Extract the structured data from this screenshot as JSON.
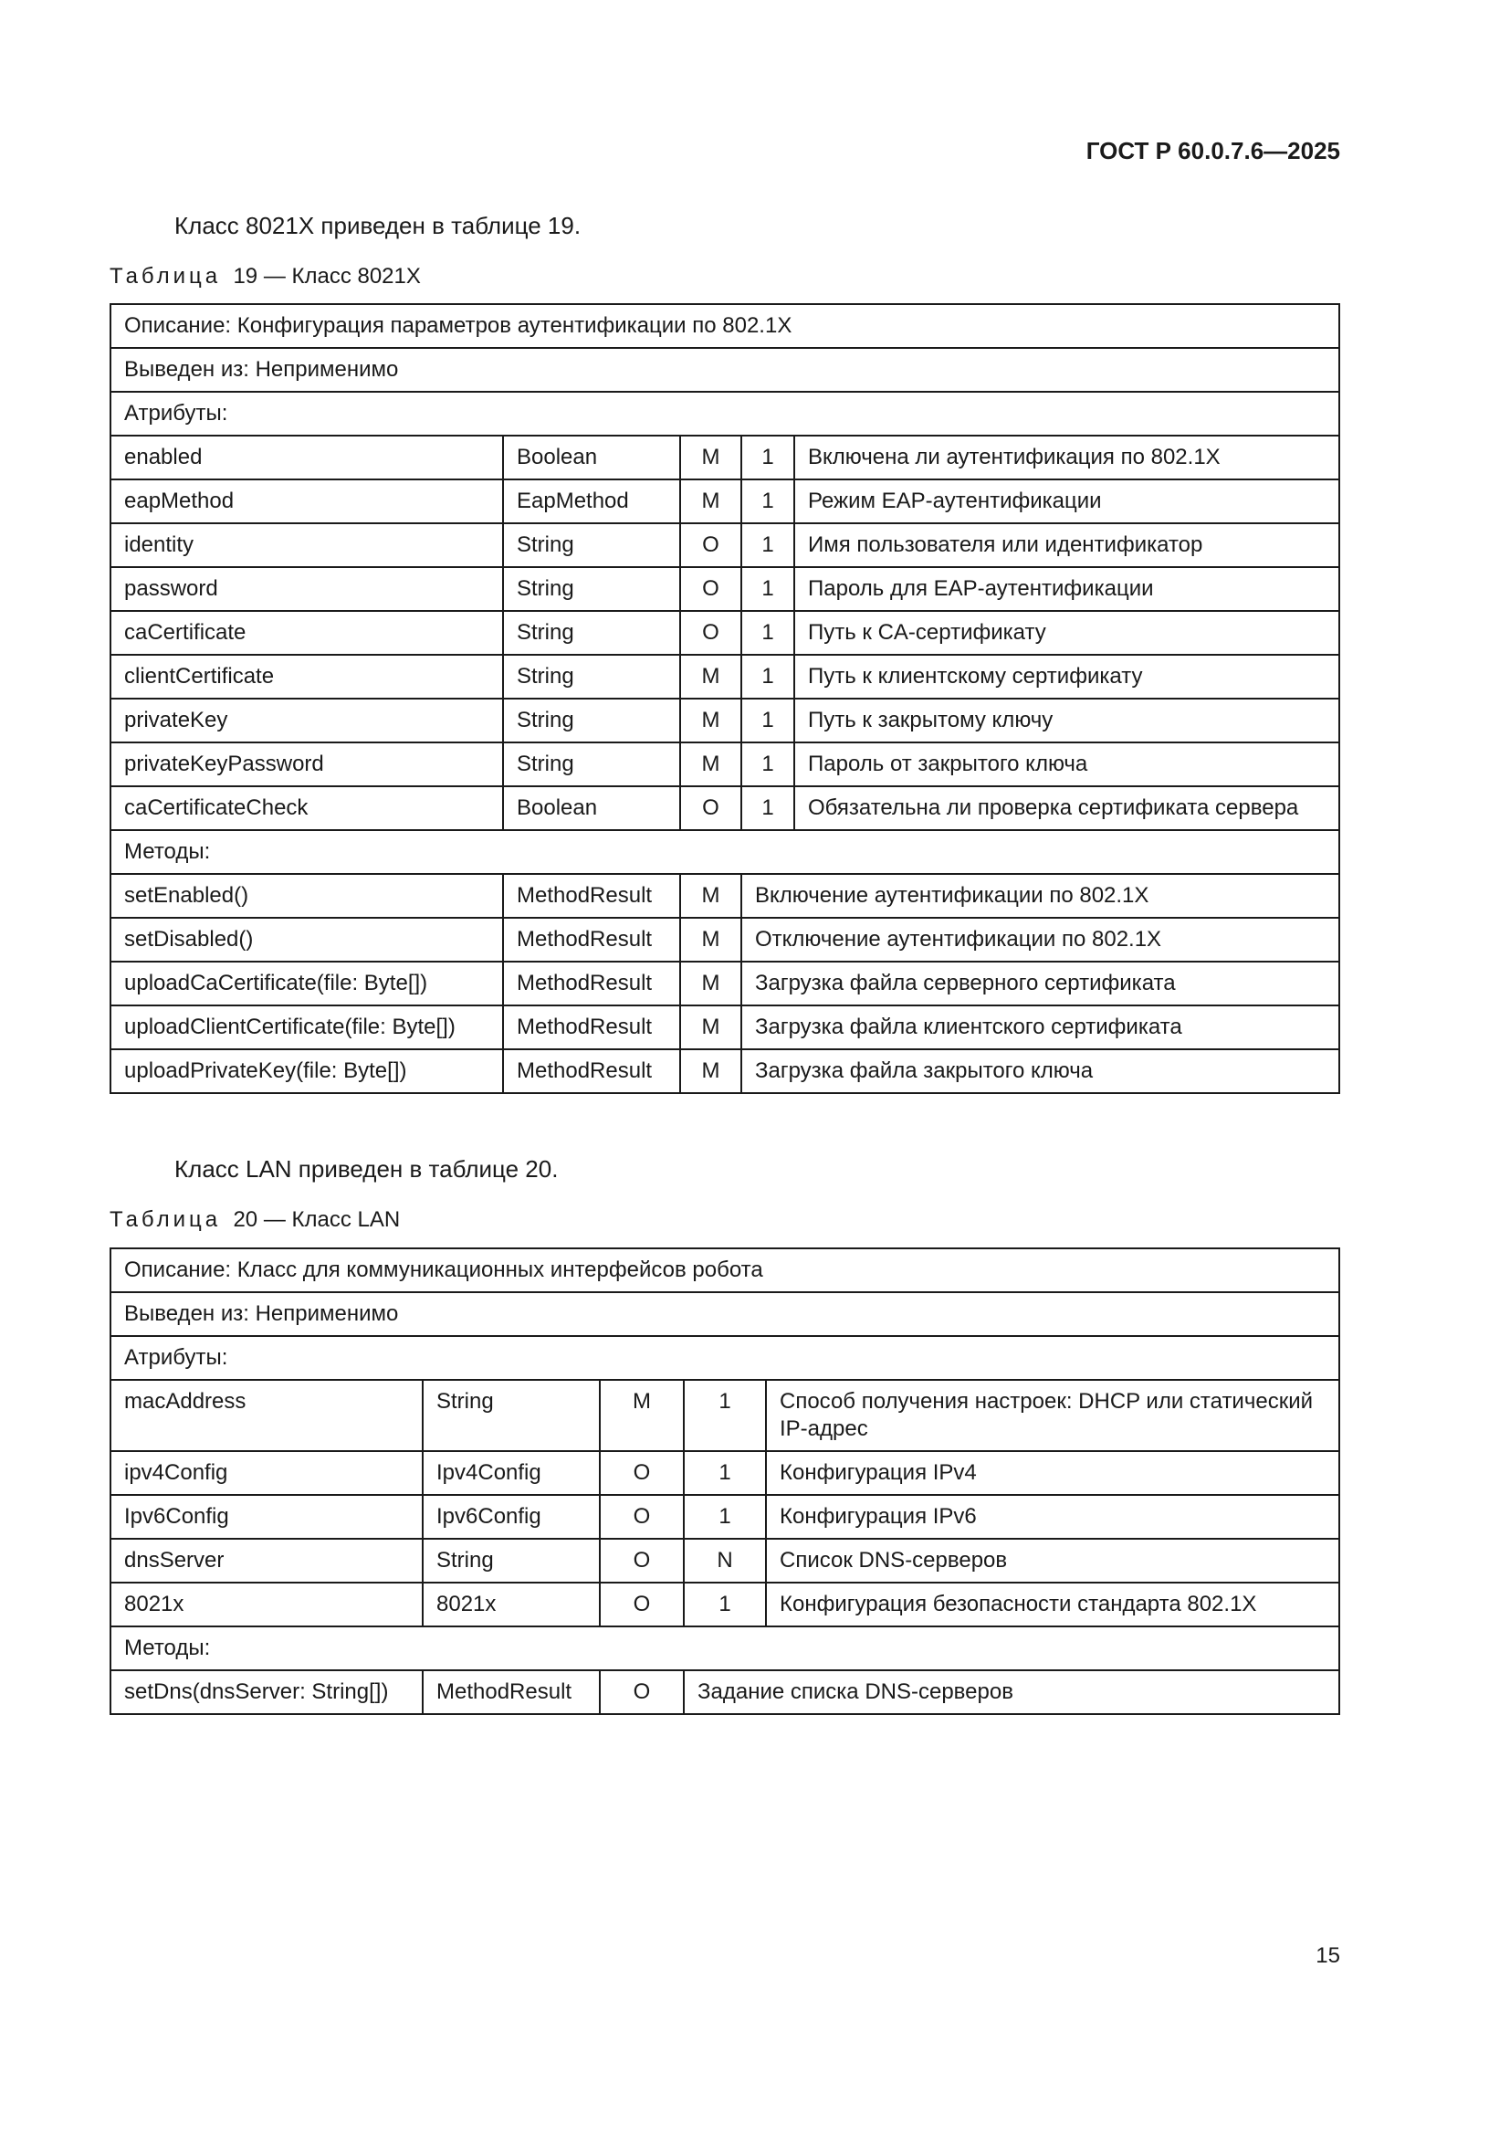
{
  "header": {
    "doc_code": "ГОСТ Р 60.0.7.6—2025"
  },
  "section1": {
    "intro": "Класс 8021X приведен в таблице 19.",
    "caption_label": "Таблица",
    "caption_text": "19 — Класс 8021X",
    "description": "Описание: Конфигурация параметров аутентификации по 802.1X",
    "derived": "Выведен из: Неприменимо",
    "attributes_label": "Атрибуты:",
    "attributes": [
      [
        "enabled",
        "Boolean",
        "M",
        "1",
        "Включена ли аутентификация по 802.1X"
      ],
      [
        "eapMethod",
        "EapMethod",
        "M",
        "1",
        "Режим EAP-аутентификации"
      ],
      [
        "identity",
        "String",
        "O",
        "1",
        "Имя пользователя или идентификатор"
      ],
      [
        "password",
        "String",
        "O",
        "1",
        "Пароль для EAP-аутентификации"
      ],
      [
        "caCertificate",
        "String",
        "O",
        "1",
        "Путь к CA-сертификату"
      ],
      [
        "clientCertificate",
        "String",
        "M",
        "1",
        "Путь к клиентскому сертификату"
      ],
      [
        "privateKey",
        "String",
        "M",
        "1",
        "Путь к закрытому ключу"
      ],
      [
        "privateKeyPassword",
        "String",
        "M",
        "1",
        "Пароль от закрытого ключа"
      ],
      [
        "caCertificateCheck",
        "Boolean",
        "O",
        "1",
        "Обязательна ли проверка сертификата сервера"
      ]
    ],
    "methods_label": "Методы:",
    "methods": [
      [
        "setEnabled()",
        "MethodResult",
        "M",
        "Включение аутентификации по 802.1X"
      ],
      [
        "setDisabled()",
        "MethodResult",
        "M",
        "Отключение аутентификации по 802.1X"
      ],
      [
        "uploadCaCertificate(file: Byte[])",
        "MethodResult",
        "M",
        "Загрузка файла серверного сертификата"
      ],
      [
        "uploadClientCertificate(file: Byte[])",
        "MethodResult",
        "M",
        "Загрузка файла клиентского сертификата"
      ],
      [
        "uploadPrivateKey(file: Byte[])",
        "MethodResult",
        "M",
        "Загрузка файла закрытого ключа"
      ]
    ]
  },
  "section2": {
    "intro": "Класс LAN приведен в таблице 20.",
    "caption_label": "Таблица",
    "caption_text": "20 — Класс LAN",
    "description": "Описание: Класс для коммуникационных интерфейсов робота",
    "derived": "Выведен из: Неприменимо",
    "attributes_label": "Атрибуты:",
    "attributes": [
      [
        "macAddress",
        "String",
        "M",
        "1",
        "Способ получения настроек: DHCP или статический IP-адрес"
      ],
      [
        "ipv4Config",
        "Ipv4Config",
        "O",
        "1",
        "Конфигурация IPv4"
      ],
      [
        "Ipv6Config",
        "Ipv6Config",
        "O",
        "1",
        "Конфигурация IPv6"
      ],
      [
        "dnsServer",
        "String",
        "O",
        "N",
        "Список DNS-серверов"
      ],
      [
        "8021x",
        "8021x",
        "O",
        "1",
        "Конфигурация безопасности стандарта 802.1X"
      ]
    ],
    "methods_label": "Методы:",
    "methods": [
      [
        "setDns(dnsServer: String[])",
        "MethodResult",
        "O",
        "Задание списка DNS-серверов"
      ]
    ]
  },
  "footer": {
    "page_number": "15"
  }
}
